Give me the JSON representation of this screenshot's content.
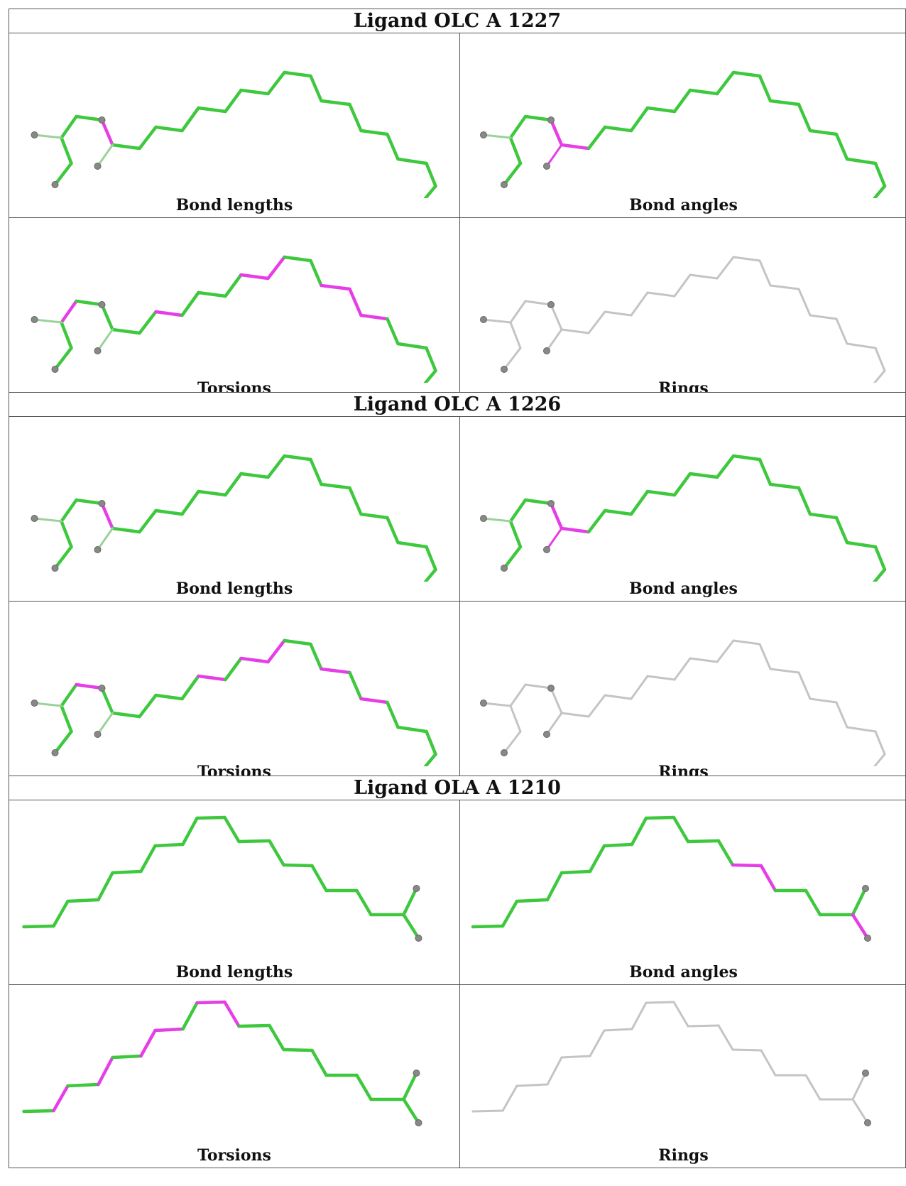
{
  "colors": {
    "ok": "#3ec83e",
    "outlier": "#e63ee6",
    "neutral": "#c4c4c4",
    "atom": "#888888"
  },
  "ligands": [
    {
      "title": "Ligand OLC A 1227",
      "type": "OLC",
      "panels": [
        {
          "caption": "Bond lengths",
          "highlight": [
            2
          ]
        },
        {
          "caption": "Bond angles",
          "highlight": [
            2,
            3
          ]
        },
        {
          "caption": "Torsions",
          "highlight": [
            0,
            5,
            9,
            10,
            13,
            14,
            15
          ]
        },
        {
          "caption": "Rings",
          "highlight": []
        }
      ]
    },
    {
      "title": "Ligand OLC A 1226",
      "type": "OLC",
      "panels": [
        {
          "caption": "Bond lengths",
          "highlight": [
            2
          ]
        },
        {
          "caption": "Bond angles",
          "highlight": [
            2,
            3
          ]
        },
        {
          "caption": "Torsions",
          "highlight": [
            1,
            7,
            9,
            10,
            13,
            15
          ]
        },
        {
          "caption": "Rings",
          "highlight": []
        }
      ]
    },
    {
      "title": "Ligand OLA A 1210",
      "type": "OLA",
      "panels": [
        {
          "caption": "Bond lengths",
          "highlight": []
        },
        {
          "caption": "Bond angles",
          "highlight": [
            12,
            13
          ]
        },
        {
          "caption": "Torsions",
          "highlight": [
            1,
            3,
            5,
            6,
            8,
            9
          ]
        },
        {
          "caption": "Rings",
          "highlight": []
        }
      ]
    }
  ]
}
